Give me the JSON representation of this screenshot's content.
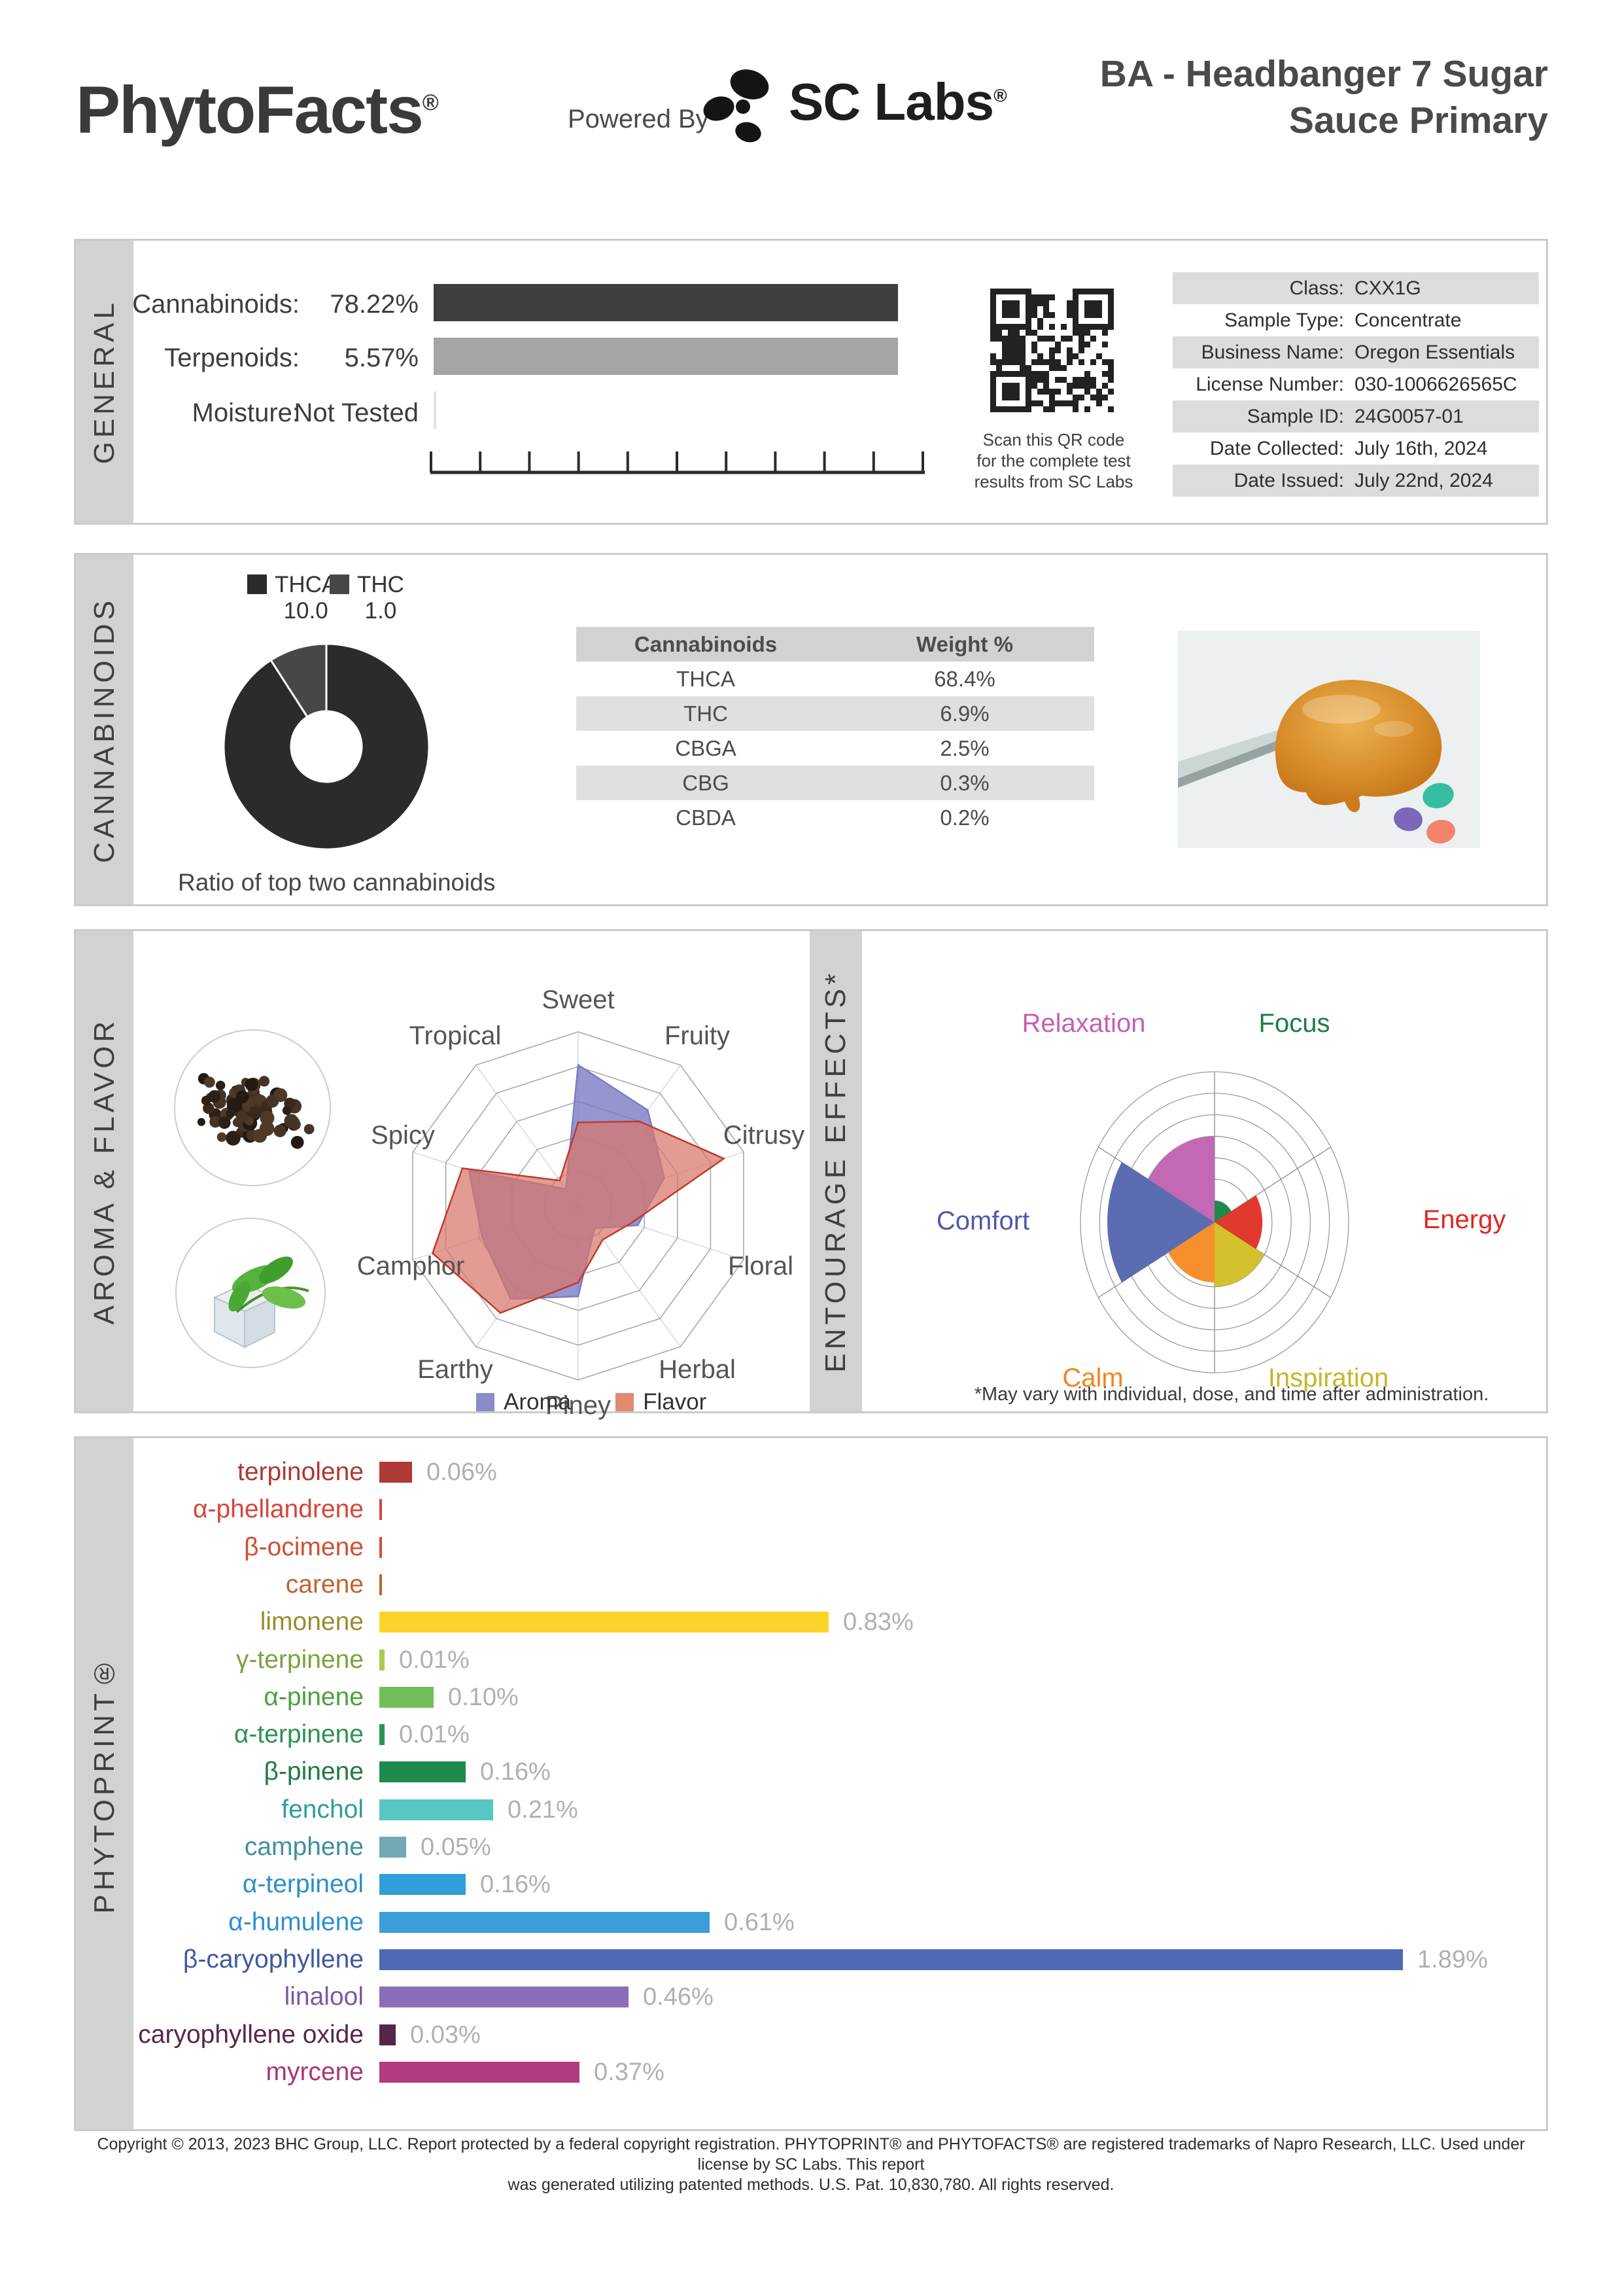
{
  "header": {
    "brand": "PhytoFacts",
    "brand_reg": "®",
    "powered_by": "Powered By",
    "lab_name": "SC Labs",
    "lab_reg": "®",
    "title_line1": "BA - Headbanger 7 Sugar",
    "title_line2": "Sauce Primary"
  },
  "stripes": {
    "top": "#5069b5",
    "middle": "#fbd32b",
    "bottom": "#3a9ed8"
  },
  "sections": {
    "general": {
      "label": "GENERAL",
      "metrics": [
        {
          "label": "Cannabinoids:",
          "value": "78.22%"
        },
        {
          "label": "Terpenoids:",
          "value": "5.57%"
        },
        {
          "label": "Moisture:",
          "value": "Not Tested"
        }
      ],
      "qr_caption": [
        "Scan this QR code",
        "for the complete test",
        "results from SC Labs"
      ],
      "info_rows": [
        {
          "label": "Class:",
          "value": "CXX1G"
        },
        {
          "label": "Sample Type:",
          "value": "Concentrate"
        },
        {
          "label": "Business Name:",
          "value": "Oregon Essentials"
        },
        {
          "label": "License Number:",
          "value": "030-1006626565C"
        },
        {
          "label": "Sample ID:",
          "value": "24G0057-01"
        },
        {
          "label": "Date Collected:",
          "value": "July 16th, 2024"
        },
        {
          "label": "Date Issued:",
          "value": "July 22nd, 2024"
        }
      ]
    },
    "cannabinoids": {
      "label": "CANNABINOIDS",
      "caption": "Ratio of top two cannabinoids",
      "table_headers": [
        "Cannabinoids",
        "Weight %"
      ],
      "table_rows": [
        {
          "name": "THCA",
          "weight": "68.4%"
        },
        {
          "name": "THC",
          "weight": "6.9%"
        },
        {
          "name": "CBGA",
          "weight": "2.5%"
        },
        {
          "name": "CBG",
          "weight": "0.3%"
        },
        {
          "name": "CBDA",
          "weight": "0.2%"
        }
      ]
    },
    "aroma_flavor": {
      "label": "AROMA & FLAVOR",
      "legend": [
        {
          "name": "Aroma",
          "color": "#8a8cc8"
        },
        {
          "name": "Flavor",
          "color": "#e08a72"
        }
      ]
    },
    "entourage": {
      "label": "ENTOURAGE EFFECTS*",
      "footnote": "*May vary with individual, dose, and time after administration."
    },
    "phytoprint": {
      "label": "PHYTOPRINT®"
    }
  },
  "chart_data": [
    {
      "id": "cannabinoid_ratio_donut",
      "type": "pie",
      "donut": true,
      "title": "Ratio of top two cannabinoids",
      "slices": [
        {
          "label": "THCA",
          "value": 10.0,
          "display": "10.0",
          "color": "#2b2b2b"
        },
        {
          "label": "THC",
          "value": 1.0,
          "display": "1.0",
          "color": "#474747"
        }
      ]
    },
    {
      "id": "aroma_flavor_radar",
      "type": "radar",
      "rings": 5,
      "scale_max": 5,
      "categories": [
        "Sweet",
        "Fruity",
        "Citrusy",
        "Floral",
        "Herbal",
        "Piney",
        "Earthy",
        "Camphor",
        "Spicy",
        "Tropical"
      ],
      "series": [
        {
          "name": "Aroma",
          "stroke": "#7a7cc4",
          "fill": "rgba(122,124,196,0.80)",
          "values": [
            4.05,
            3.4,
            2.6,
            1.8,
            0.8,
            2.6,
            3.3,
            2.9,
            3.3,
            0.6
          ]
        },
        {
          "name": "Flavor",
          "stroke": "#c0392b",
          "fill": "rgba(216,118,106,0.72)",
          "values": [
            2.4,
            3.0,
            4.4,
            1.6,
            1.2,
            2.2,
            3.8,
            4.4,
            3.5,
            0.9
          ]
        }
      ]
    },
    {
      "id": "entourage_polar",
      "type": "polar",
      "rings": 7,
      "scale_max": 7,
      "sectors": [
        {
          "label": "Focus",
          "value": 1.0,
          "color": "#1e8a4c",
          "label_color": "#1e7d46"
        },
        {
          "label": "Energy",
          "value": 2.5,
          "color": "#e0392e",
          "label_color": "#e02721"
        },
        {
          "label": "Inspiration",
          "value": 3.0,
          "color": "#d3c12d",
          "label_color": "#c6b52a"
        },
        {
          "label": "Calm",
          "value": 2.8,
          "color": "#f6902c",
          "label_color": "#f58420"
        },
        {
          "label": "Comfort",
          "value": 5.6,
          "color": "#5b6cb3",
          "label_color": "#5058a8"
        },
        {
          "label": "Relaxation",
          "value": 4.0,
          "color": "#c268b4",
          "label_color": "#c45fb2"
        }
      ]
    },
    {
      "id": "phytoprint_terpenes",
      "type": "bar",
      "unit": "%",
      "items": [
        {
          "name": "terpinolene",
          "pct": 0.06,
          "display": "0.06%",
          "label_color": "#a93a35",
          "bar_color": "#b03a35"
        },
        {
          "name": "α-phellandrene",
          "pct": 0.0,
          "display": "",
          "label_color": "#d6453c",
          "bar_color": "#d6453c"
        },
        {
          "name": "β-ocimene",
          "pct": 0.0,
          "display": "",
          "label_color": "#d04f35",
          "bar_color": "#d04f35"
        },
        {
          "name": "carene",
          "pct": 0.0,
          "display": "",
          "label_color": "#c2622f",
          "bar_color": "#c2622f"
        },
        {
          "name": "limonene",
          "pct": 0.83,
          "display": "0.83%",
          "label_color": "#9a8c2e",
          "bar_color": "#fbd32b"
        },
        {
          "name": "γ-terpinene",
          "pct": 0.01,
          "display": "0.01%",
          "label_color": "#7ba23e",
          "bar_color": "#a8cc4e"
        },
        {
          "name": "α-pinene",
          "pct": 0.1,
          "display": "0.10%",
          "label_color": "#4f9e3e",
          "bar_color": "#72bf5a"
        },
        {
          "name": "α-terpinene",
          "pct": 0.01,
          "display": "0.01%",
          "label_color": "#2f9254",
          "bar_color": "#2f9254"
        },
        {
          "name": "β-pinene",
          "pct": 0.16,
          "display": "0.16%",
          "label_color": "#1f7a44",
          "bar_color": "#1f8a4d"
        },
        {
          "name": "fenchol",
          "pct": 0.21,
          "display": "0.21%",
          "label_color": "#2f9e9a",
          "bar_color": "#57c7c3"
        },
        {
          "name": "camphene",
          "pct": 0.05,
          "display": "0.05%",
          "label_color": "#3f8fa0",
          "bar_color": "#74a8b5"
        },
        {
          "name": "α-terpineol",
          "pct": 0.16,
          "display": "0.16%",
          "label_color": "#2b8fc9",
          "bar_color": "#2e9fd9"
        },
        {
          "name": "α-humulene",
          "pct": 0.61,
          "display": "0.61%",
          "label_color": "#2e8fd0",
          "bar_color": "#3a9ed8"
        },
        {
          "name": "β-caryophyllene",
          "pct": 1.89,
          "display": "1.89%",
          "label_color": "#41599e",
          "bar_color": "#5069b5"
        },
        {
          "name": "linalool",
          "pct": 0.46,
          "display": "0.46%",
          "label_color": "#7a5aa8",
          "bar_color": "#8a6fb8"
        },
        {
          "name": "caryophyllene oxide",
          "pct": 0.03,
          "display": "0.03%",
          "label_color": "#5a2548",
          "bar_color": "#55254a"
        },
        {
          "name": "myrcene",
          "pct": 0.37,
          "display": "0.37%",
          "label_color": "#a83579",
          "bar_color": "#b03b80"
        }
      ]
    }
  ],
  "footer": {
    "line1": "Copyright © 2013, 2023 BHC Group, LLC. Report protected by a federal copyright registration. PHYTOPRINT® and PHYTOFACTS® are registered trademarks of Napro Research, LLC. Used under license by SC Labs. This report",
    "line2": "was generated utilizing patented methods. U.S. Pat. 10,830,780. All rights reserved."
  }
}
